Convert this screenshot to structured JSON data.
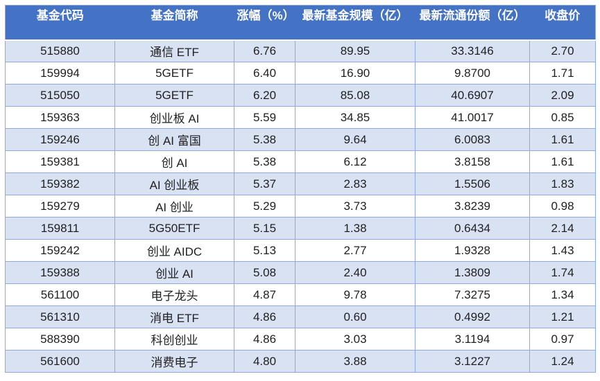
{
  "colors": {
    "header_bg": "#4472C4",
    "header_text": "#FFFFFF",
    "band_bg": "#D9E2F3",
    "border": "#8EAADB",
    "text": "#1F1F1F",
    "page_bg": "#FFFFFF"
  },
  "chart_data": {
    "type": "table",
    "title": "",
    "columns": [
      "基金代码",
      "基金简称",
      "涨幅（%）",
      "最新基金规模（亿）",
      "最新流通份额（亿）",
      "收盘价"
    ],
    "column_keys": [
      "fund-code",
      "fund-name",
      "change-pct",
      "fund-size",
      "float-shares",
      "close-price"
    ],
    "rows": [
      [
        "515880",
        "通信 ETF",
        "6.76",
        "89.95",
        "33.3146",
        "2.70"
      ],
      [
        "159994",
        "5GETF",
        "6.40",
        "16.90",
        "9.8700",
        "1.71"
      ],
      [
        "515050",
        "5GETF",
        "6.20",
        "85.08",
        "40.6907",
        "2.09"
      ],
      [
        "159363",
        "创业板 AI",
        "5.59",
        "34.85",
        "41.0017",
        "0.85"
      ],
      [
        "159246",
        "创 AI 富国",
        "5.38",
        "9.64",
        "6.0083",
        "1.61"
      ],
      [
        "159381",
        "创 AI",
        "5.38",
        "6.12",
        "3.8158",
        "1.61"
      ],
      [
        "159382",
        "AI 创业板",
        "5.37",
        "2.83",
        "1.5506",
        "1.83"
      ],
      [
        "159279",
        "AI 创业",
        "5.29",
        "3.73",
        "3.8239",
        "0.98"
      ],
      [
        "159811",
        "5G50ETF",
        "5.15",
        "1.38",
        "0.6434",
        "2.14"
      ],
      [
        "159242",
        "创业 AIDC",
        "5.13",
        "2.77",
        "1.9328",
        "1.43"
      ],
      [
        "159388",
        "创业 AI",
        "5.08",
        "2.40",
        "1.3809",
        "1.74"
      ],
      [
        "561100",
        "电子龙头",
        "4.87",
        "9.78",
        "7.3275",
        "1.34"
      ],
      [
        "561310",
        "消电 ETF",
        "4.86",
        "0.60",
        "0.4992",
        "1.21"
      ],
      [
        "588390",
        "科创创业",
        "4.86",
        "3.03",
        "3.1194",
        "0.97"
      ],
      [
        "561600",
        "消费电子",
        "4.80",
        "3.88",
        "3.1227",
        "1.24"
      ]
    ],
    "banded_row_indices_1based": [
      1,
      3,
      5,
      7,
      9,
      11,
      13,
      15
    ],
    "layout": {
      "header_alignment": "center-top",
      "cell_alignment": "center-middle",
      "grid": "all-borders-body, no-internal-borders-header"
    }
  }
}
